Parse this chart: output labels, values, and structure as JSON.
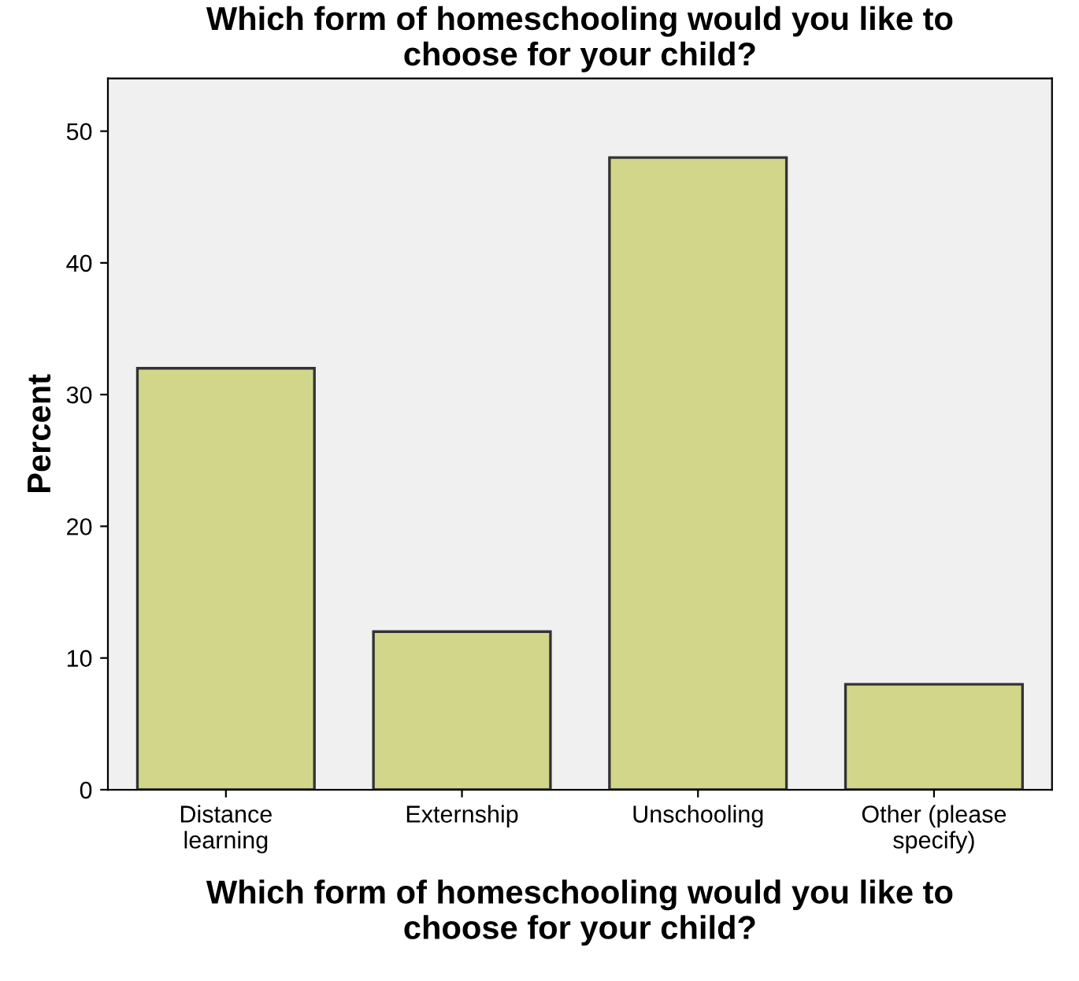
{
  "chart_data": {
    "type": "bar",
    "title": "Which form of homeschooling would you like to\nchoose for your child?",
    "xlabel": "Which form of homeschooling would you like to\nchoose for your child?",
    "ylabel": "Percent",
    "categories": [
      "Distance\nlearning",
      "Externship",
      "Unschooling",
      "Other (please\nspecify)"
    ],
    "values": [
      32,
      12,
      48,
      8
    ],
    "color": "#d2d68a",
    "ylim": [
      0,
      54
    ],
    "yticks": [
      0,
      10,
      20,
      30,
      40,
      50
    ],
    "grid": false,
    "legend": false
  }
}
